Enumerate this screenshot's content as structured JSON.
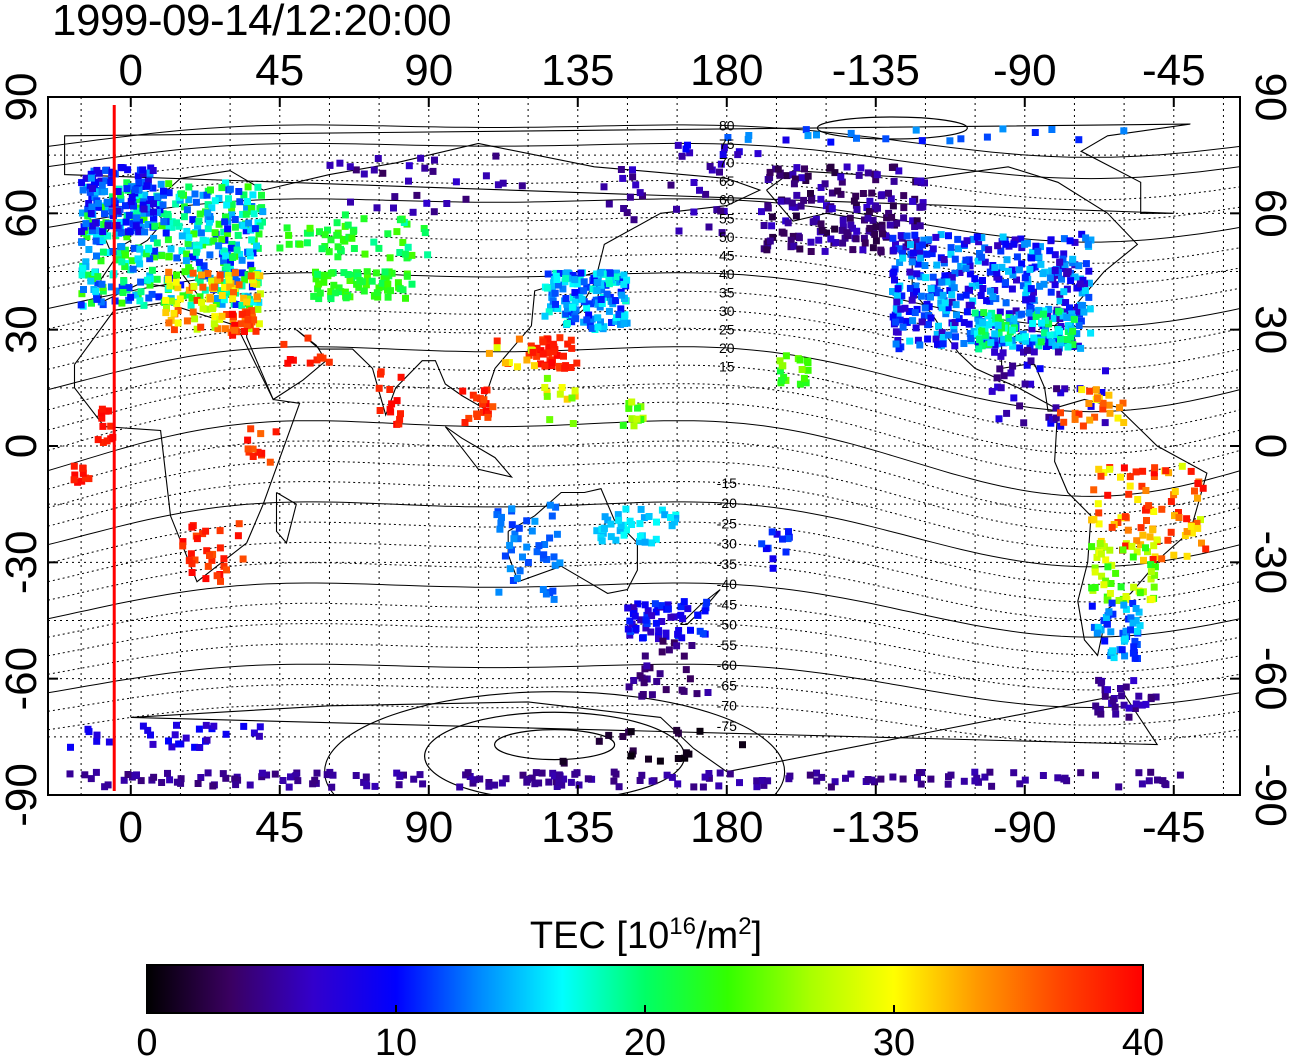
{
  "chart_data": {
    "type": "heatmap",
    "title": "1999-09-14/12:20:00",
    "map": "world map (cylindrical projection) of ionospheric total electron content",
    "colorbar": {
      "label_prefix": "TEC  [10",
      "label_exp": "16",
      "label_mid": "/m",
      "label_exp2": "2",
      "label_suffix": "]",
      "min": 0,
      "max": 40,
      "ticks": [
        0,
        10,
        20,
        30,
        40
      ],
      "colormap": [
        "#000000",
        "#3a0060",
        "#3300cc",
        "#0000ff",
        "#0088ff",
        "#00ffff",
        "#00ff66",
        "#33ff00",
        "#aaff00",
        "#ffff00",
        "#ff9900",
        "#ff4400",
        "#ff0000"
      ]
    },
    "lon_ticks": [
      0,
      45,
      90,
      135,
      180,
      225,
      270,
      315
    ],
    "lon_labels": [
      "0",
      "45",
      "90",
      "135",
      "180",
      "-135",
      "-90",
      "-45"
    ],
    "lat_ticks": [
      90,
      60,
      30,
      0,
      -30,
      -60,
      -90
    ],
    "xlim": [
      -25,
      335
    ],
    "ylim": [
      -90,
      90
    ],
    "contour_labels": [
      "80",
      "75",
      "70",
      "65",
      "60",
      "55",
      "50",
      "45",
      "40",
      "35",
      "30",
      "25",
      "20",
      "15",
      "-15",
      "-20",
      "-25",
      "-30",
      "-35",
      "-40",
      "-45",
      "-50",
      "-55",
      "-60",
      "-65",
      "-70",
      "-75"
    ],
    "marker_longitude": -5,
    "marker_color": "#ff0000"
  }
}
